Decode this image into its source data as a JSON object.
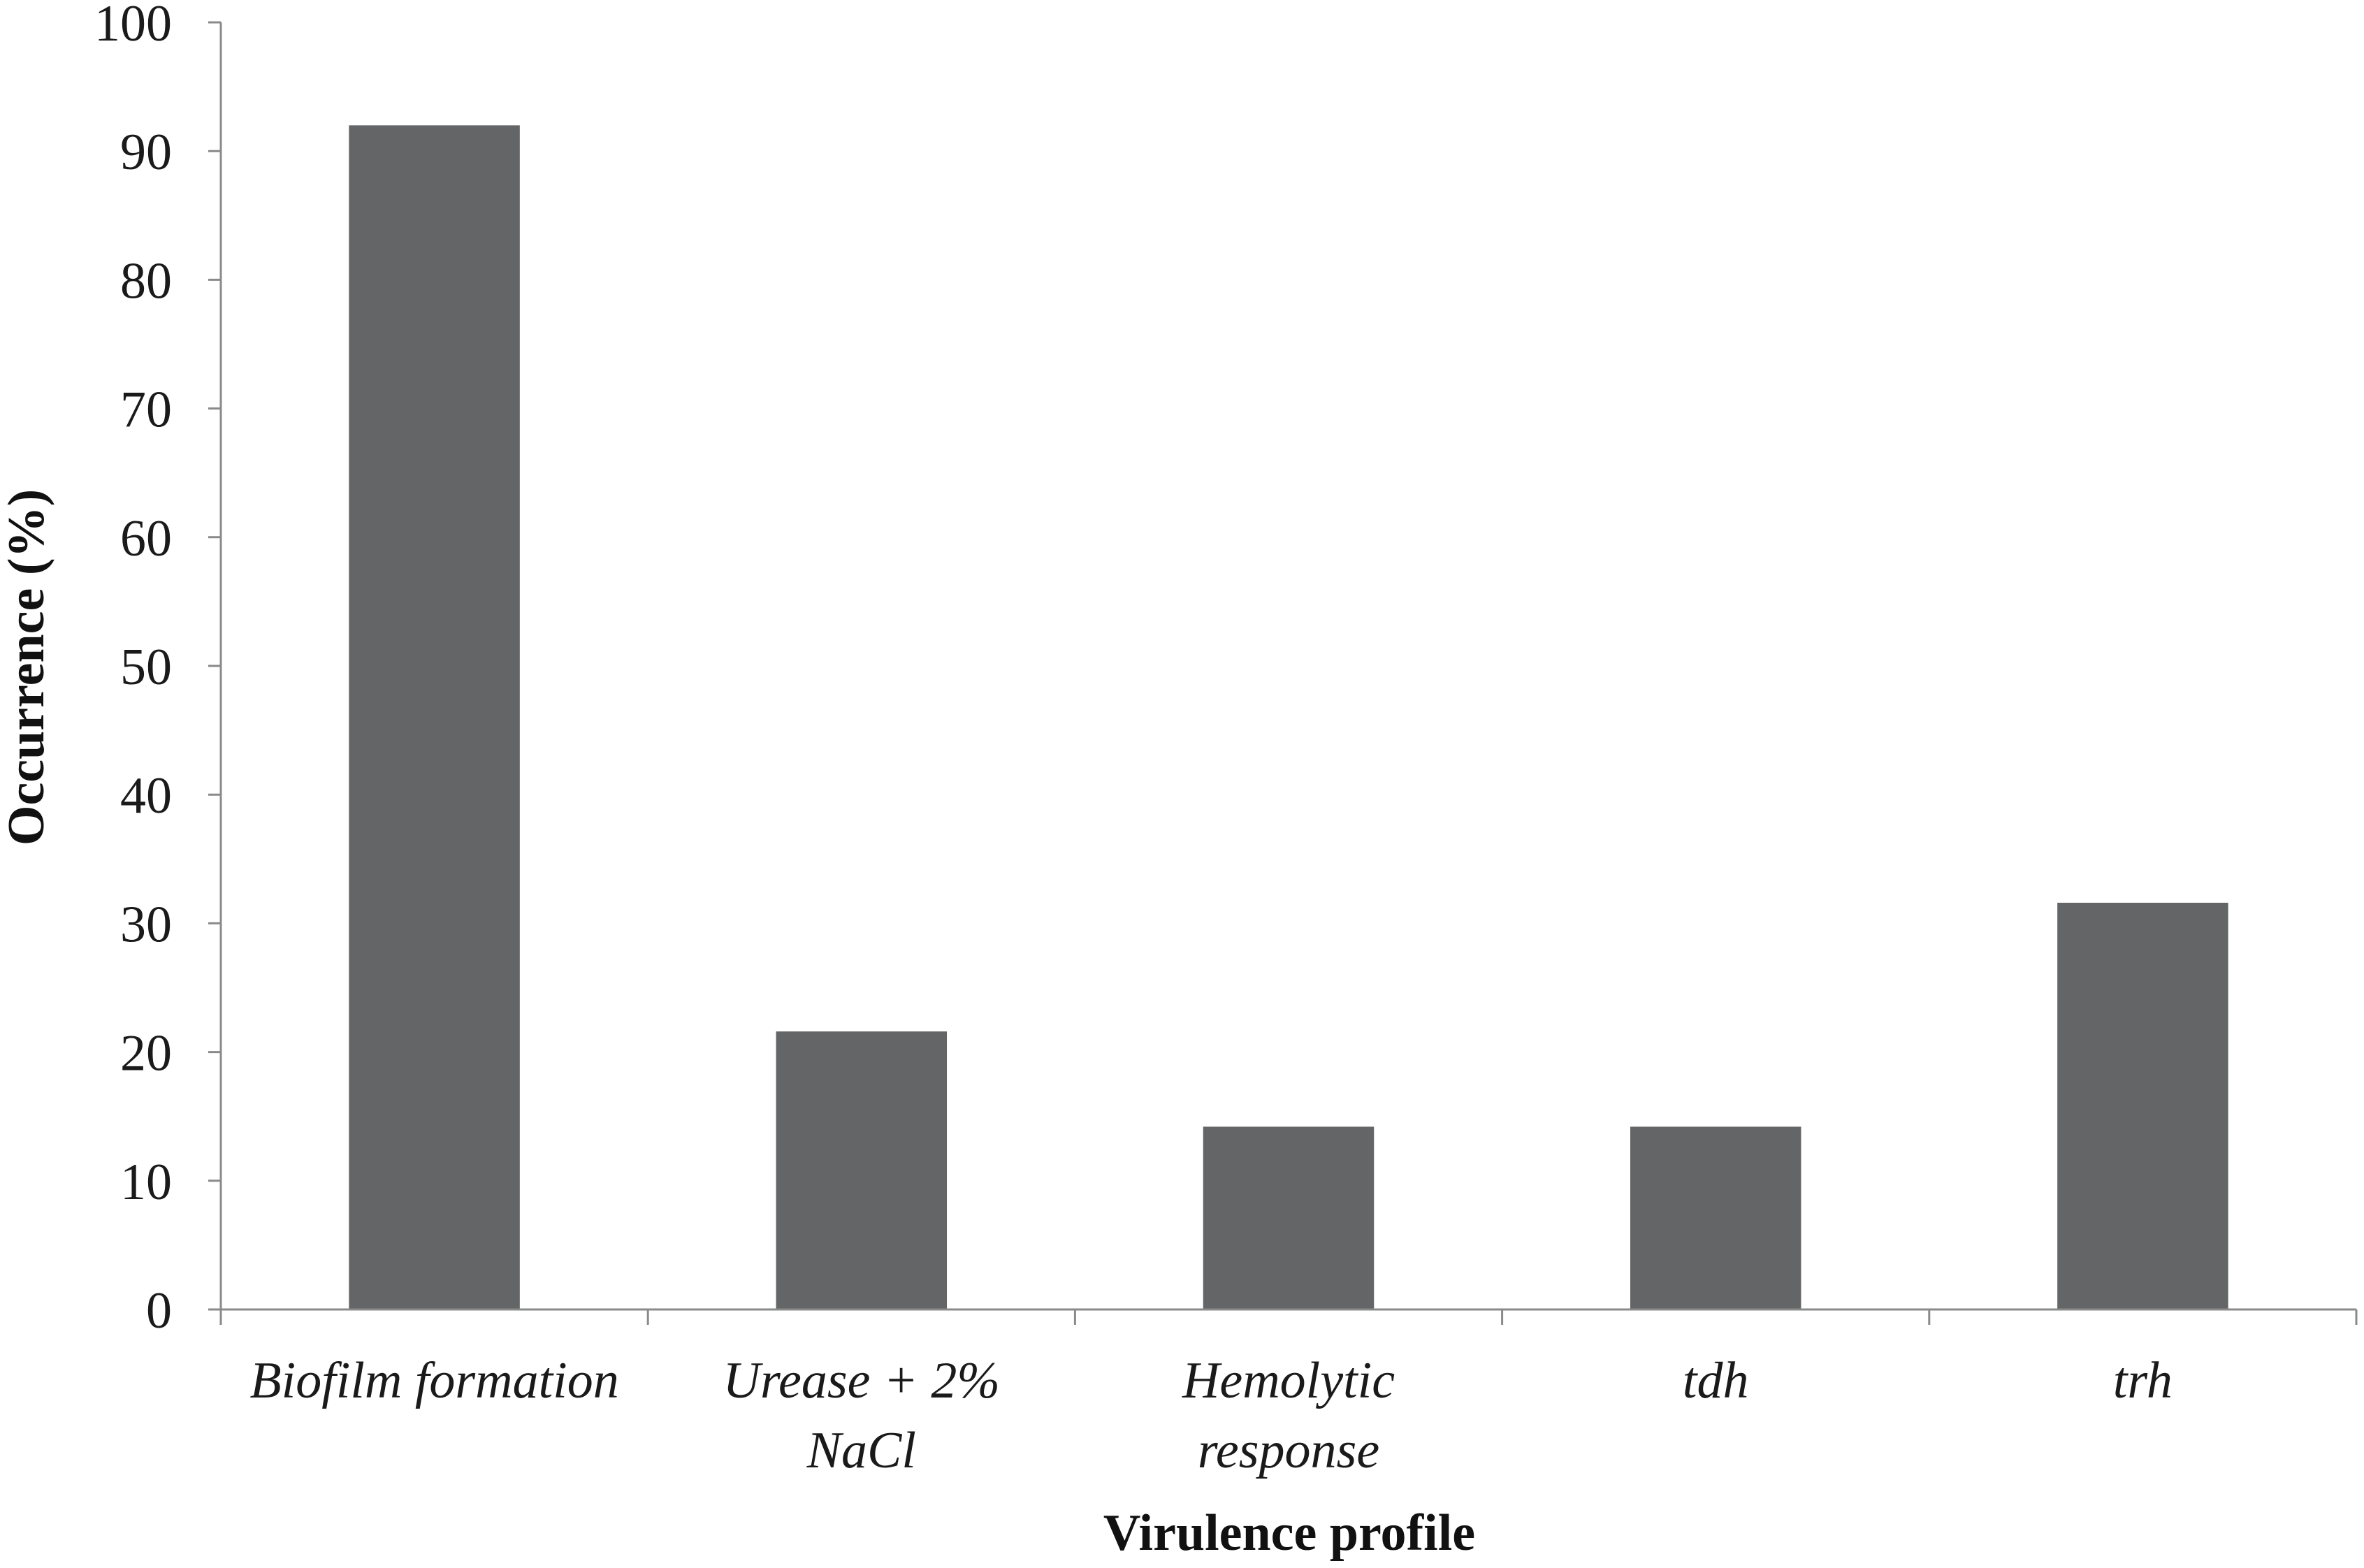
{
  "chart_data": {
    "type": "bar",
    "title": "",
    "xlabel": "Virulence profile",
    "ylabel": "Occurrence (%)",
    "ylim": [
      0,
      100
    ],
    "yticks": [
      0,
      10,
      20,
      30,
      40,
      50,
      60,
      70,
      80,
      90,
      100
    ],
    "categories": [
      [
        "Biofilm formation"
      ],
      [
        "Urease + 2%",
        "NaCl"
      ],
      [
        "Hemolytic",
        "response"
      ],
      [
        "tdh"
      ],
      [
        "trh"
      ]
    ],
    "values": [
      92,
      21.6,
      14.2,
      14.2,
      31.6
    ],
    "bar_color": "#636567",
    "grid": false,
    "legend": "none"
  }
}
